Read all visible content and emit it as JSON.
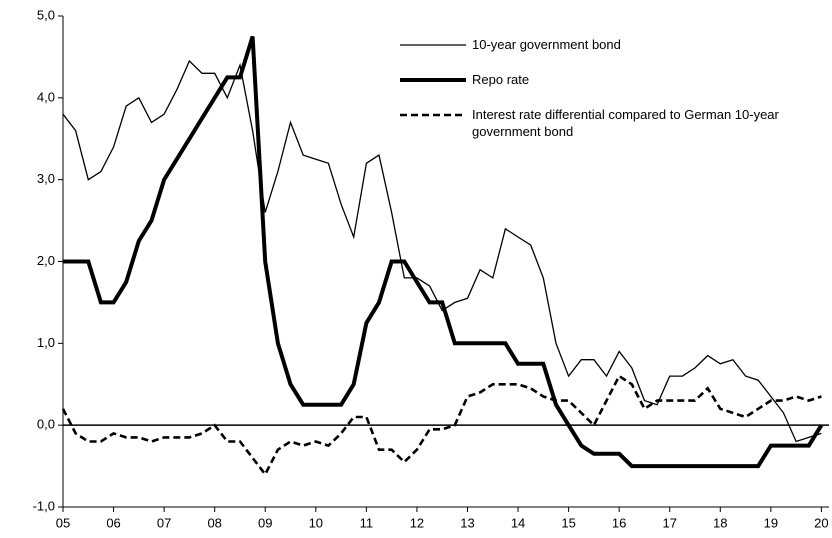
{
  "chart_data": {
    "type": "line",
    "x": [
      2005,
      2005.25,
      2005.5,
      2005.75,
      2006,
      2006.25,
      2006.5,
      2006.75,
      2007,
      2007.25,
      2007.5,
      2007.75,
      2008,
      2008.25,
      2008.5,
      2008.75,
      2009,
      2009.25,
      2009.5,
      2009.75,
      2010,
      2010.25,
      2010.5,
      2010.75,
      2011,
      2011.25,
      2011.5,
      2011.75,
      2012,
      2012.25,
      2012.5,
      2012.75,
      2013,
      2013.25,
      2013.5,
      2013.75,
      2014,
      2014.25,
      2014.5,
      2014.75,
      2015,
      2015.25,
      2015.5,
      2015.75,
      2016,
      2016.25,
      2016.5,
      2016.75,
      2017,
      2017.25,
      2017.5,
      2017.75,
      2018,
      2018.25,
      2018.5,
      2018.75,
      2019,
      2019.25,
      2019.5,
      2019.75,
      2020
    ],
    "series": [
      {
        "name": "10-year government bond",
        "color": "#000000",
        "width": 1.3,
        "dash": "none",
        "values": [
          3.8,
          3.6,
          3.0,
          3.1,
          3.4,
          3.9,
          4.0,
          3.7,
          3.8,
          4.1,
          4.45,
          4.3,
          4.3,
          4.0,
          4.4,
          3.6,
          2.6,
          3.1,
          3.7,
          3.3,
          3.25,
          3.2,
          2.7,
          2.3,
          3.2,
          3.3,
          2.6,
          1.8,
          1.8,
          1.7,
          1.4,
          1.5,
          1.55,
          1.9,
          1.8,
          2.4,
          2.3,
          2.2,
          1.8,
          1.0,
          0.6,
          0.8,
          0.8,
          0.6,
          0.9,
          0.7,
          0.3,
          0.25,
          0.6,
          0.6,
          0.7,
          0.85,
          0.75,
          0.8,
          0.6,
          0.55,
          0.35,
          0.15,
          -0.2,
          -0.15,
          -0.1
        ]
      },
      {
        "name": "Repo rate",
        "color": "#000000",
        "width": 4,
        "dash": "none",
        "values": [
          2.0,
          2.0,
          2.0,
          1.5,
          1.5,
          1.75,
          2.25,
          2.5,
          3.0,
          3.25,
          3.5,
          3.75,
          4.0,
          4.25,
          4.25,
          4.75,
          2.0,
          1.0,
          0.5,
          0.25,
          0.25,
          0.25,
          0.25,
          0.5,
          1.25,
          1.5,
          2.0,
          2.0,
          1.75,
          1.5,
          1.5,
          1.0,
          1.0,
          1.0,
          1.0,
          1.0,
          0.75,
          0.75,
          0.75,
          0.25,
          0.0,
          -0.25,
          -0.35,
          -0.35,
          -0.35,
          -0.5,
          -0.5,
          -0.5,
          -0.5,
          -0.5,
          -0.5,
          -0.5,
          -0.5,
          -0.5,
          -0.5,
          -0.5,
          -0.25,
          -0.25,
          -0.25,
          -0.25,
          0.0
        ]
      },
      {
        "name": "Interest rate differential compared to German 10-year government bond",
        "color": "#000000",
        "width": 2.6,
        "dash": "7 4",
        "values": [
          0.2,
          -0.1,
          -0.2,
          -0.2,
          -0.1,
          -0.15,
          -0.15,
          -0.2,
          -0.15,
          -0.15,
          -0.15,
          -0.1,
          0.0,
          -0.2,
          -0.2,
          -0.4,
          -0.6,
          -0.3,
          -0.2,
          -0.25,
          -0.2,
          -0.25,
          -0.1,
          0.1,
          0.1,
          -0.3,
          -0.3,
          -0.45,
          -0.3,
          -0.05,
          -0.05,
          0.0,
          0.35,
          0.4,
          0.5,
          0.5,
          0.5,
          0.45,
          0.35,
          0.3,
          0.3,
          0.15,
          0.0,
          0.3,
          0.6,
          0.5,
          0.2,
          0.3,
          0.3,
          0.3,
          0.3,
          0.45,
          0.2,
          0.15,
          0.1,
          0.2,
          0.3,
          0.3,
          0.35,
          0.3,
          0.35
        ]
      }
    ],
    "xlim": [
      2005,
      2020.15
    ],
    "xticks": [
      {
        "value": 2005,
        "label": "05"
      },
      {
        "value": 2006,
        "label": "06"
      },
      {
        "value": 2007,
        "label": "07"
      },
      {
        "value": 2008,
        "label": "08"
      },
      {
        "value": 2009,
        "label": "09"
      },
      {
        "value": 2010,
        "label": "10"
      },
      {
        "value": 2011,
        "label": "11"
      },
      {
        "value": 2012,
        "label": "12"
      },
      {
        "value": 2013,
        "label": "13"
      },
      {
        "value": 2014,
        "label": "14"
      },
      {
        "value": 2015,
        "label": "15"
      },
      {
        "value": 2016,
        "label": "16"
      },
      {
        "value": 2017,
        "label": "17"
      },
      {
        "value": 2018,
        "label": "18"
      },
      {
        "value": 2019,
        "label": "19"
      },
      {
        "value": 2020,
        "label": "20"
      }
    ],
    "ylim": [
      -1,
      5
    ],
    "yticks": [
      {
        "value": -1,
        "label": "-1,0"
      },
      {
        "value": 0,
        "label": "0,0"
      },
      {
        "value": 1,
        "label": "1,0"
      },
      {
        "value": 2,
        "label": "2,0"
      },
      {
        "value": 3,
        "label": "3,0"
      },
      {
        "value": 4,
        "label": "4,0"
      },
      {
        "value": 5,
        "label": "5,0"
      }
    ]
  }
}
